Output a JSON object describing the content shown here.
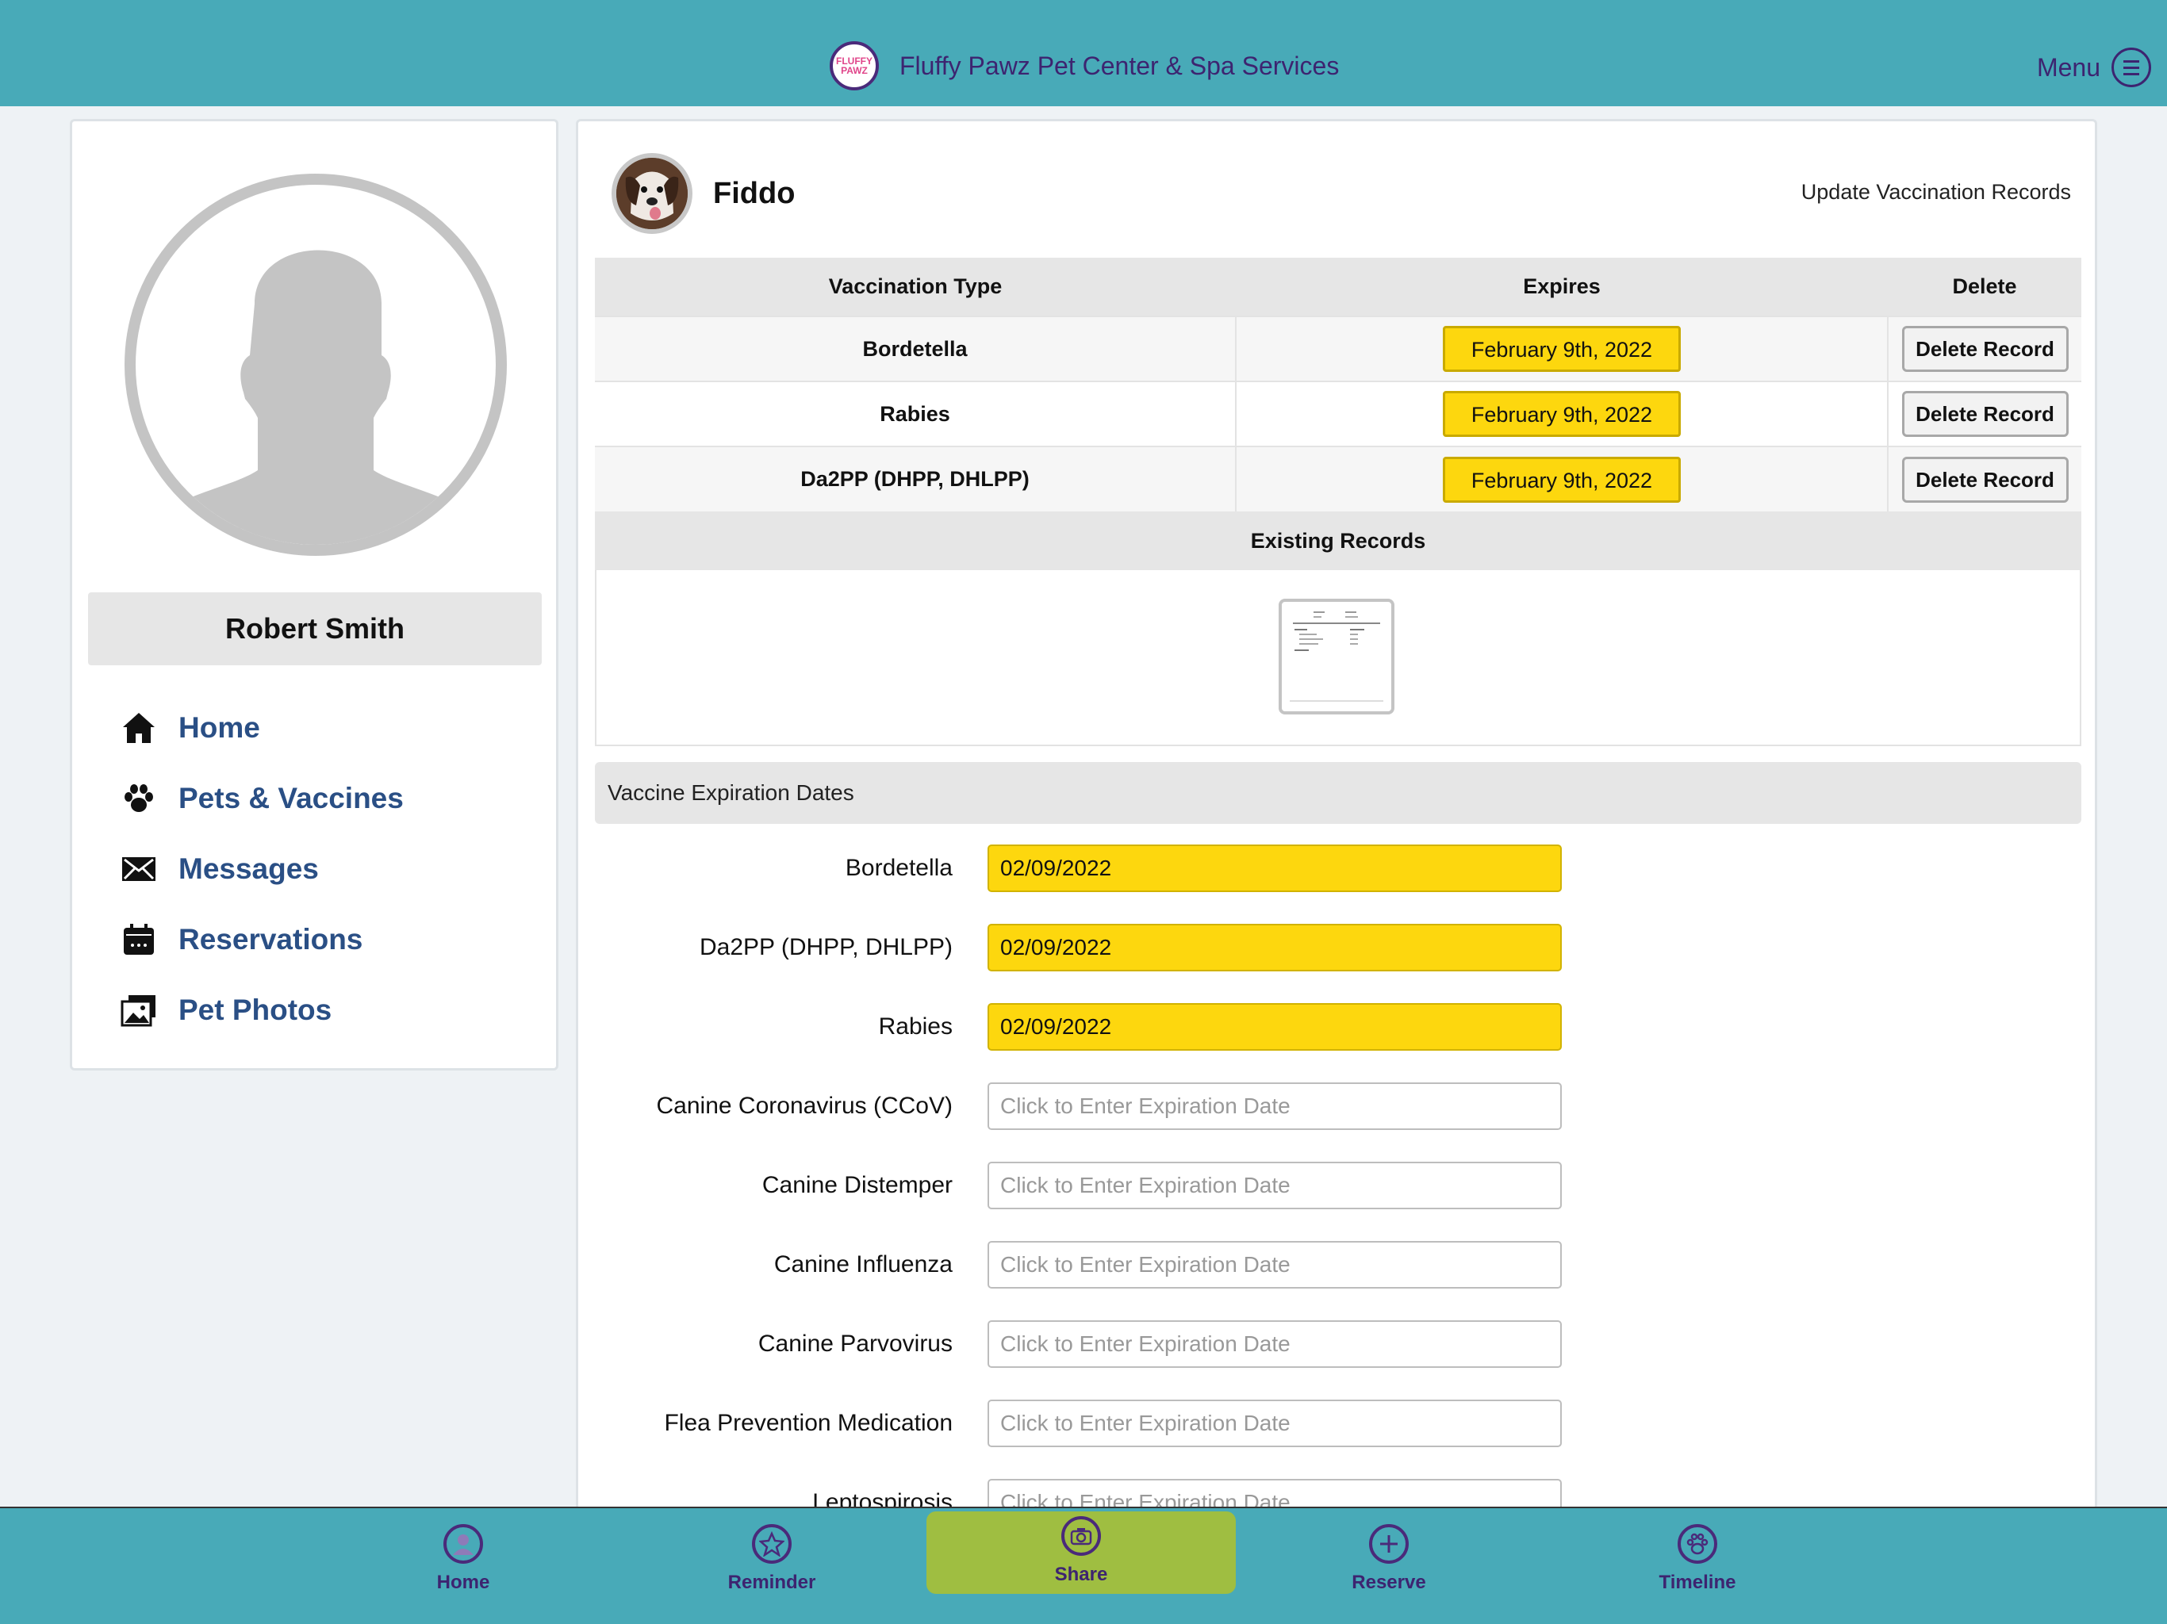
{
  "header": {
    "logo_text": "FLUFFY PAWZ",
    "title": "Fluffy Pawz Pet Center & Spa Services",
    "menu_label": "Menu"
  },
  "sidebar": {
    "user_name": "Robert Smith",
    "items": [
      {
        "label": "Home",
        "icon": "home-icon"
      },
      {
        "label": "Pets & Vaccines",
        "icon": "paw-icon"
      },
      {
        "label": "Messages",
        "icon": "envelope-icon"
      },
      {
        "label": "Reservations",
        "icon": "calendar-icon"
      },
      {
        "label": "Pet Photos",
        "icon": "photos-icon"
      }
    ]
  },
  "pet": {
    "name": "Fiddo",
    "update_link": "Update Vaccination Records"
  },
  "vaccination_table": {
    "headers": [
      "Vaccination Type",
      "Expires",
      "Delete"
    ],
    "rows": [
      {
        "type": "Bordetella",
        "expires": "February 9th, 2022",
        "action": "Delete Record"
      },
      {
        "type": "Rabies",
        "expires": "February 9th, 2022",
        "action": "Delete Record"
      },
      {
        "type": "Da2PP (DHPP, DHLPP)",
        "expires": "February 9th, 2022",
        "action": "Delete Record"
      }
    ],
    "records_header": "Existing Records"
  },
  "expiration": {
    "heading": "Vaccine Expiration Dates",
    "placeholder": "Click to Enter Expiration Date",
    "fields": [
      {
        "label": "Bordetella",
        "value": "02/09/2022"
      },
      {
        "label": "Da2PP (DHPP, DHLPP)",
        "value": "02/09/2022"
      },
      {
        "label": "Rabies",
        "value": "02/09/2022"
      },
      {
        "label": "Canine Coronavirus (CCoV)",
        "value": ""
      },
      {
        "label": "Canine Distemper",
        "value": ""
      },
      {
        "label": "Canine Influenza",
        "value": ""
      },
      {
        "label": "Canine Parvovirus",
        "value": ""
      },
      {
        "label": "Flea Prevention Medication",
        "value": ""
      },
      {
        "label": "Leptospirosis",
        "value": ""
      }
    ]
  },
  "bottom_nav": {
    "tabs": [
      {
        "label": "Home",
        "icon": "user-icon"
      },
      {
        "label": "Reminder",
        "icon": "star-icon"
      },
      {
        "label": "Share",
        "icon": "camera-icon"
      },
      {
        "label": "Reserve",
        "icon": "plus-icon"
      },
      {
        "label": "Timeline",
        "icon": "paw-icon"
      }
    ]
  },
  "colors": {
    "header_bg": "#48aab8",
    "brand_purple": "#3d2470",
    "nav_blue": "#2a4f85",
    "highlight_yellow": "#fdd70e",
    "share_green": "#9fbe41"
  }
}
